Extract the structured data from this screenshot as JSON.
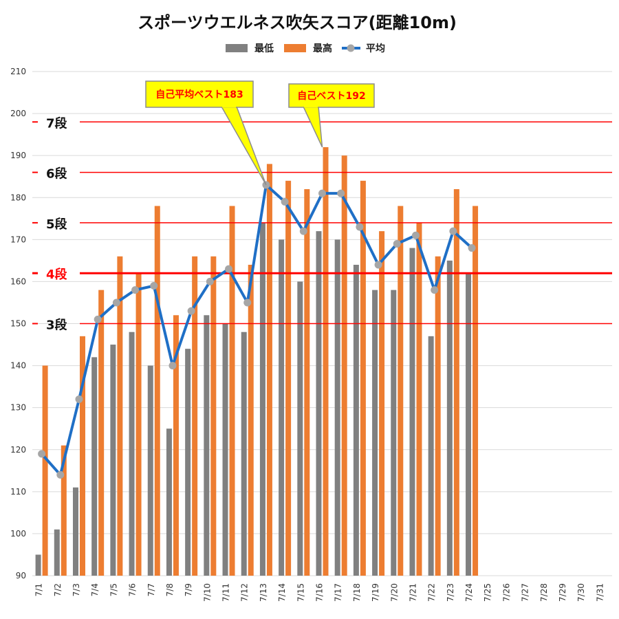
{
  "chart_data": {
    "type": "bar",
    "title": "スポーツウエルネス吹矢スコア(距離10m)",
    "categories": [
      "7/1",
      "7/2",
      "7/3",
      "7/4",
      "7/5",
      "7/6",
      "7/7",
      "7/8",
      "7/9",
      "7/10",
      "7/11",
      "7/12",
      "7/13",
      "7/14",
      "7/15",
      "7/16",
      "7/17",
      "7/18",
      "7/19",
      "7/20",
      "7/21",
      "7/22",
      "7/23",
      "7/24",
      "7/25",
      "7/26",
      "7/27",
      "7/28",
      "7/29",
      "7/30",
      "7/31"
    ],
    "ylim": [
      90,
      210
    ],
    "y_ticks": [
      "90",
      "100",
      "110",
      "120",
      "130",
      "140",
      "150",
      "160",
      "170",
      "180",
      "190",
      "200",
      "210"
    ],
    "grid": true,
    "legend_position": "top",
    "series": [
      {
        "name": "最低",
        "type": "bar",
        "color": "#808080",
        "values": [
          95,
          101,
          111,
          142,
          145,
          148,
          140,
          125,
          144,
          152,
          150,
          148,
          174,
          170,
          160,
          172,
          170,
          164,
          158,
          158,
          168,
          147,
          165,
          162,
          null,
          null,
          null,
          null,
          null,
          null,
          null
        ]
      },
      {
        "name": "最高",
        "type": "bar",
        "color": "#ed7d31",
        "values": [
          140,
          121,
          147,
          158,
          166,
          162,
          178,
          152,
          166,
          166,
          178,
          164,
          188,
          184,
          182,
          192,
          190,
          184,
          172,
          178,
          174,
          166,
          182,
          178,
          null,
          null,
          null,
          null,
          null,
          null,
          null
        ]
      },
      {
        "name": "平均",
        "type": "line",
        "color": "#1f6fc6",
        "marker_color": "#a6a6a6",
        "values": [
          119,
          114,
          132,
          151,
          155,
          158,
          159,
          140,
          153,
          160,
          163,
          155,
          183,
          179,
          172,
          181,
          181,
          173,
          164,
          169,
          171,
          158,
          172,
          168,
          null,
          null,
          null,
          null,
          null,
          null,
          null
        ]
      }
    ],
    "reference_lines": [
      {
        "label": "7段",
        "value": 198,
        "highlight": false
      },
      {
        "label": "6段",
        "value": 186,
        "highlight": false
      },
      {
        "label": "5段",
        "value": 174,
        "highlight": false
      },
      {
        "label": "4段",
        "value": 162,
        "highlight": true
      },
      {
        "label": "3段",
        "value": 150,
        "highlight": false
      }
    ],
    "annotations": [
      {
        "text": "自己平均ベスト183",
        "category": "7/13",
        "value": 183
      },
      {
        "text": "自己ベスト192",
        "category": "7/16",
        "value": 192
      }
    ]
  }
}
